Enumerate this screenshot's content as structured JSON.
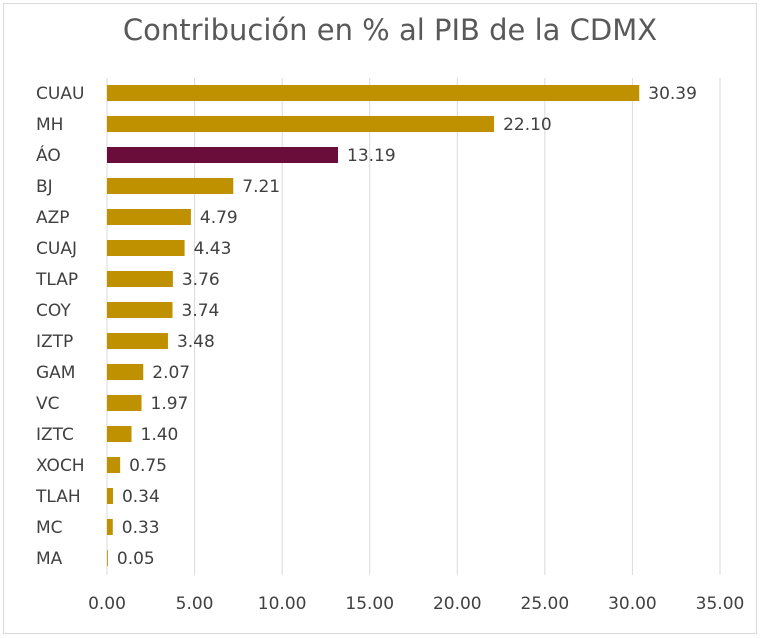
{
  "chart_data": {
    "type": "barh",
    "title": "Contribución en % al PIB de la CDMX",
    "categories": [
      "CUAU",
      "MH",
      "ÁO",
      "BJ",
      "AZP",
      "CUAJ",
      "TLAP",
      "COY",
      "IZTP",
      "GAM",
      "VC",
      "IZTC",
      "XOCH",
      "TLAH",
      "MC",
      "MA"
    ],
    "values": [
      30.39,
      22.1,
      13.19,
      7.21,
      4.79,
      4.43,
      3.76,
      3.74,
      3.48,
      2.07,
      1.97,
      1.4,
      0.75,
      0.34,
      0.33,
      0.05
    ],
    "value_labels": [
      "30.39",
      "22.10",
      "13.19",
      "7.21",
      "4.79",
      "4.43",
      "3.76",
      "3.74",
      "3.48",
      "2.07",
      "1.97",
      "1.40",
      "0.75",
      "0.34",
      "0.33",
      "0.05"
    ],
    "colors": [
      "#bf9000",
      "#bf9000",
      "#6b0d3b",
      "#bf9000",
      "#bf9000",
      "#bf9000",
      "#bf9000",
      "#bf9000",
      "#bf9000",
      "#bf9000",
      "#bf9000",
      "#bf9000",
      "#bf9000",
      "#bf9000",
      "#bf9000",
      "#bf9000"
    ],
    "xlim": [
      0,
      35
    ],
    "xticks": [
      {
        "value": 0,
        "label": "0.00"
      },
      {
        "value": 5,
        "label": "5.00"
      },
      {
        "value": 10,
        "label": "10.00"
      },
      {
        "value": 15,
        "label": "15.00"
      },
      {
        "value": 20,
        "label": "20.00"
      },
      {
        "value": 25,
        "label": "25.00"
      },
      {
        "value": 30,
        "label": "30.00"
      },
      {
        "value": 35,
        "label": "35.00"
      }
    ],
    "grid": true
  }
}
